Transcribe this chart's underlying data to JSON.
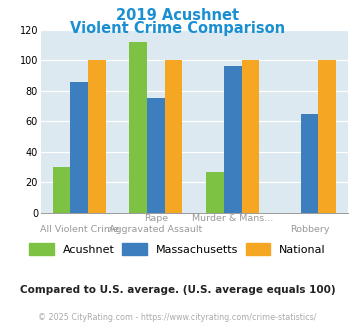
{
  "title_line1": "2019 Acushnet",
  "title_line2": "Violent Crime Comparison",
  "title_color": "#1a8fd1",
  "top_labels": [
    "",
    "Rape",
    "Murder & Mans...",
    ""
  ],
  "bot_labels": [
    "All Violent Crime",
    "Aggravated Assault",
    "",
    "Robbery"
  ],
  "group_data": [
    [
      30,
      86,
      100
    ],
    [
      112,
      75,
      100
    ],
    [
      27,
      96,
      100
    ],
    [
      0,
      65,
      100
    ]
  ],
  "skip_bar": [
    [
      3,
      0
    ]
  ],
  "acushnet_color": "#7dc242",
  "massachusetts_color": "#3d7ebf",
  "national_color": "#f5a623",
  "bar_colors": [
    "#7dc242",
    "#3d7ebf",
    "#f5a623"
  ],
  "ylim": [
    0,
    120
  ],
  "yticks": [
    0,
    20,
    40,
    60,
    80,
    100,
    120
  ],
  "plot_bg": "#dce9f0",
  "footer_text": "Compared to U.S. average. (U.S. average equals 100)",
  "footer_color": "#222222",
  "copyright_text": "© 2025 CityRating.com - https://www.cityrating.com/crime-statistics/",
  "copyright_color": "#aaaaaa",
  "legend_labels": [
    "Acushnet",
    "Massachusetts",
    "National"
  ]
}
